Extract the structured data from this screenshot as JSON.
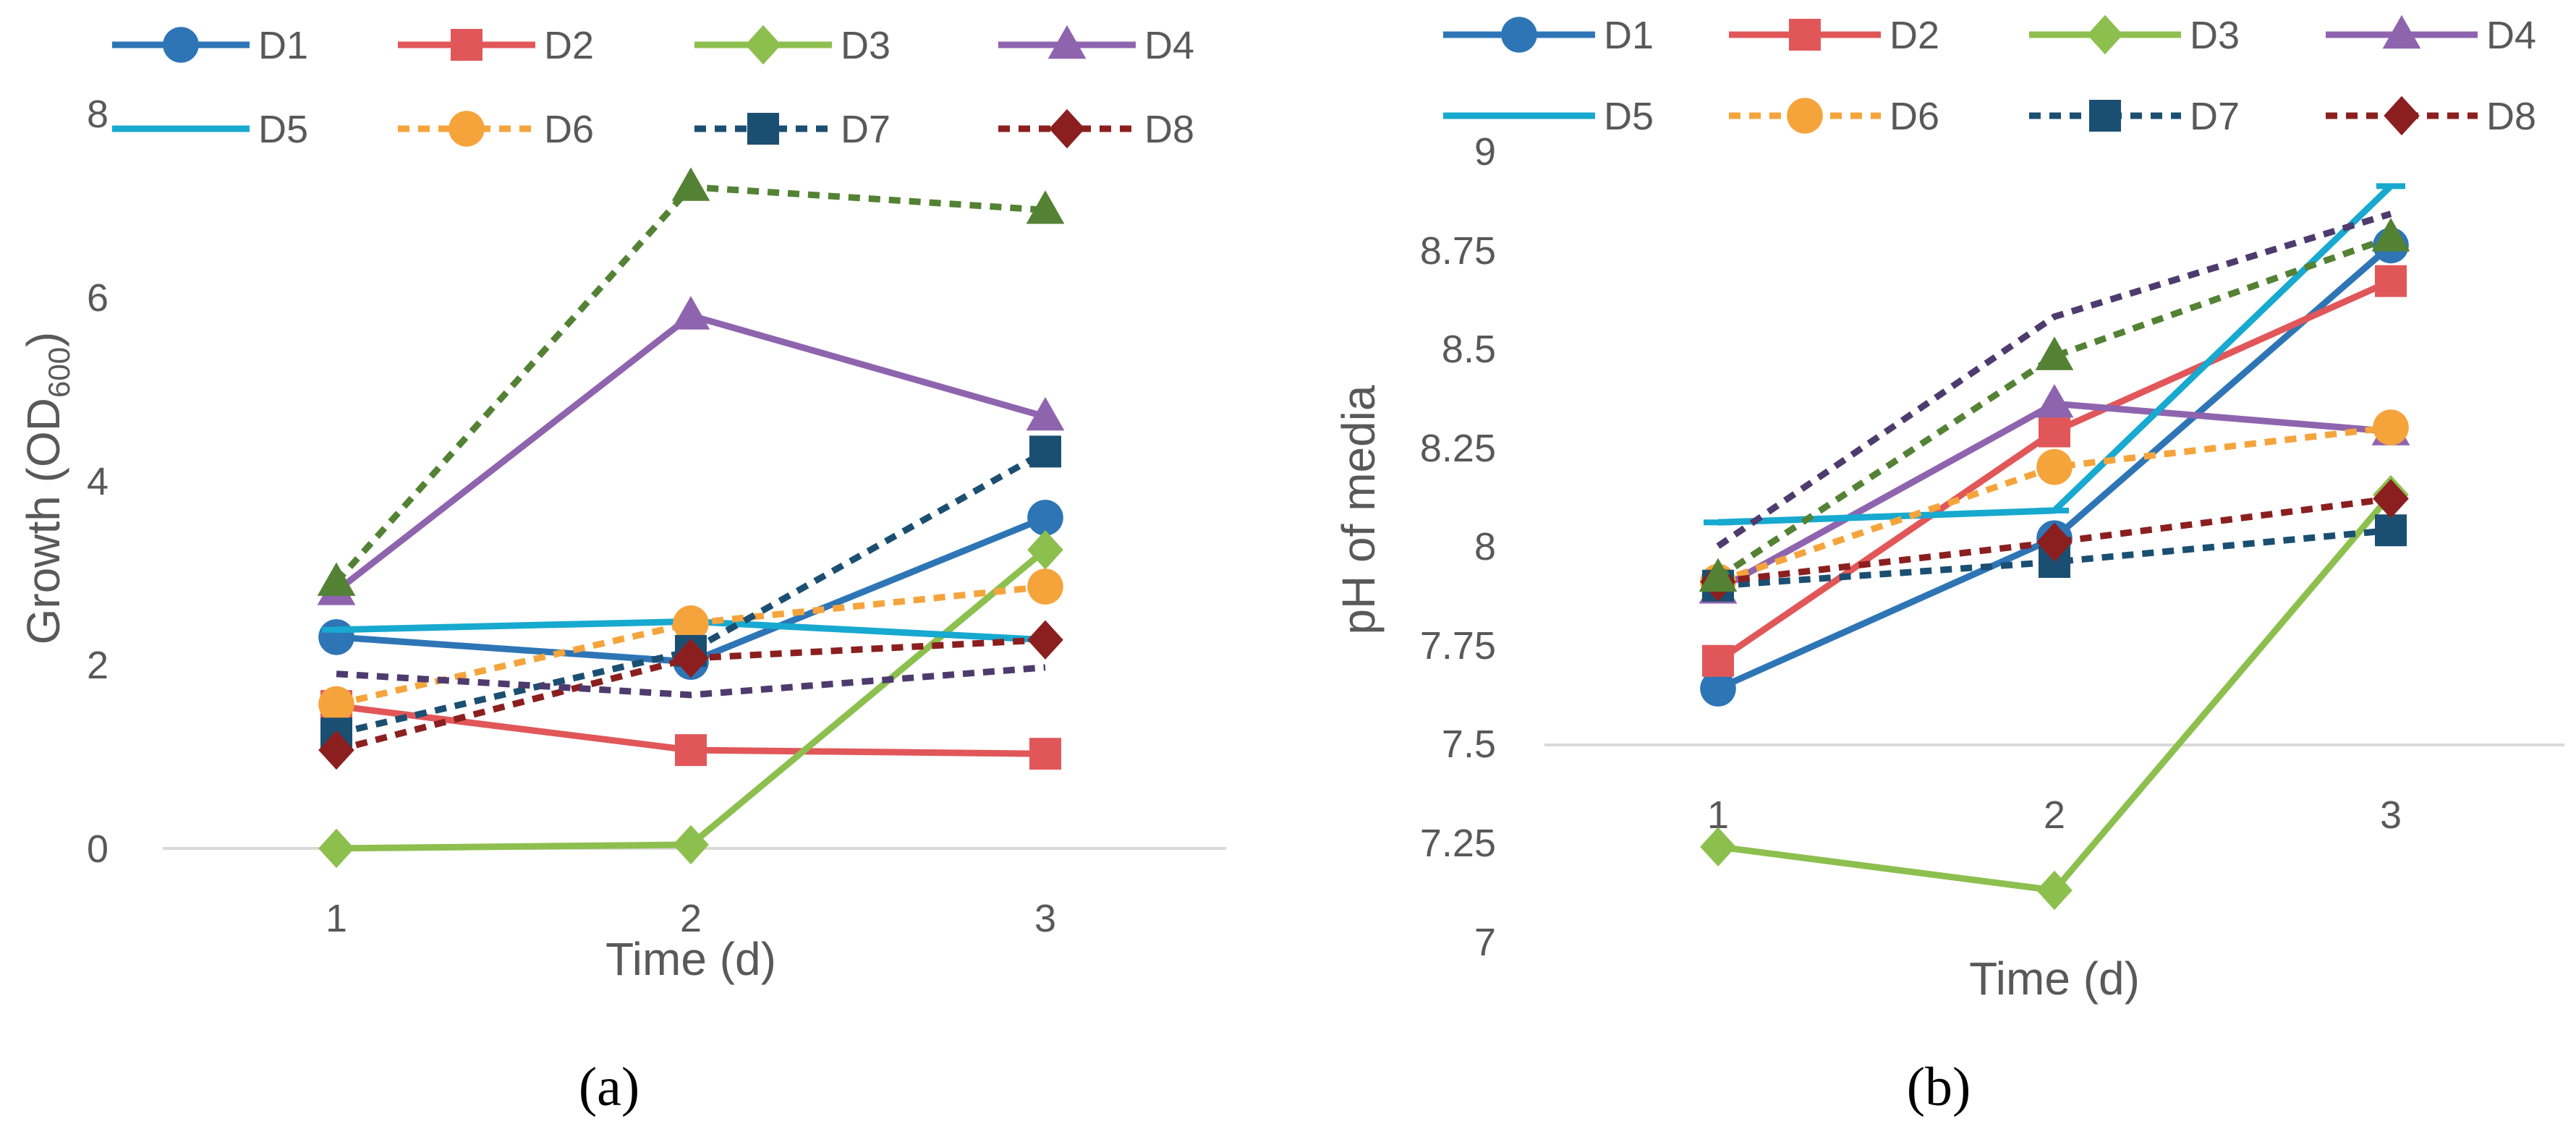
{
  "chart_data": [
    {
      "type": "line",
      "panel_label": "(a)",
      "title": "",
      "xlabel": "Time (d)",
      "ylabel": "Growth (OD600)",
      "ylabel_main": "Growth (OD",
      "ylabel_sub": "600",
      "ylabel_close": ")",
      "categories": [
        "1",
        "2",
        "3"
      ],
      "ylim": [
        0,
        8
      ],
      "yticks": [
        "0",
        "2",
        "4",
        "6",
        "8"
      ],
      "grid": false,
      "legend_position": "top",
      "series": [
        {
          "name": "D1",
          "values": [
            2.3,
            2.03,
            3.6
          ]
        },
        {
          "name": "D2",
          "values": [
            1.55,
            1.07,
            1.03
          ]
        },
        {
          "name": "D3",
          "values": [
            0.0,
            0.04,
            3.25
          ]
        },
        {
          "name": "D4",
          "values": [
            2.8,
            5.8,
            4.7
          ]
        },
        {
          "name": "D5",
          "values": [
            2.38,
            2.47,
            2.27
          ]
        },
        {
          "name": "D6",
          "values": [
            1.57,
            2.45,
            2.85
          ]
        },
        {
          "name": "D7",
          "values": [
            1.25,
            2.15,
            4.32
          ]
        },
        {
          "name": "D8",
          "values": [
            1.07,
            2.07,
            2.27
          ]
        },
        {
          "name": "",
          "values": [
            1.9,
            1.67,
            1.97
          ]
        },
        {
          "name": "",
          "values": [
            2.9,
            7.2,
            6.95
          ]
        }
      ]
    },
    {
      "type": "line",
      "panel_label": "(b)",
      "title": "",
      "xlabel": "Time (d)",
      "ylabel": "pH of media",
      "categories": [
        "1",
        "2",
        "3"
      ],
      "ylim": [
        7,
        9
      ],
      "yticks": [
        "7",
        "7.25",
        "7.5",
        "7.75",
        "8",
        "8.25",
        "8.5",
        "8.75",
        "9"
      ],
      "grid": false,
      "legend_position": "top",
      "series": [
        {
          "name": "D1",
          "values": [
            7.68,
            8.06,
            8.8
          ]
        },
        {
          "name": "D2",
          "values": [
            7.75,
            8.33,
            8.71
          ]
        },
        {
          "name": "D3",
          "values": [
            7.28,
            7.17,
            8.17
          ]
        },
        {
          "name": "D4",
          "values": [
            7.93,
            8.4,
            8.33
          ]
        },
        {
          "name": "D5",
          "values": [
            8.1,
            8.13,
            8.95
          ]
        },
        {
          "name": "D6",
          "values": [
            7.95,
            8.24,
            8.34
          ]
        },
        {
          "name": "D7",
          "values": [
            7.94,
            8.0,
            8.08
          ]
        },
        {
          "name": "D8",
          "values": [
            7.95,
            8.05,
            8.16
          ]
        },
        {
          "name": "",
          "values": [
            8.04,
            8.62,
            8.88
          ]
        },
        {
          "name": "",
          "values": [
            7.96,
            8.52,
            8.82
          ]
        }
      ]
    }
  ],
  "styles": [
    {
      "color": "#2E75B6",
      "dash": "none",
      "marker": "circle"
    },
    {
      "color": "#E15759",
      "dash": "none",
      "marker": "square"
    },
    {
      "color": "#8DBF4E",
      "dash": "none",
      "marker": "diamond"
    },
    {
      "color": "#8F64AE",
      "dash": "none",
      "marker": "triangle"
    },
    {
      "color": "#17A9CF",
      "dash": "none",
      "marker": "dash"
    },
    {
      "color": "#F5A43C",
      "dash": "16,12",
      "marker": "circle"
    },
    {
      "color": "#1B4F72",
      "dash": "16,12",
      "marker": "square"
    },
    {
      "color": "#8B1F1F",
      "dash": "16,12",
      "marker": "diamond"
    },
    {
      "color": "#4E3B6E",
      "dash": "16,12",
      "marker": "none"
    },
    {
      "color": "#548235",
      "dash": "16,12",
      "marker": "triangle"
    }
  ]
}
